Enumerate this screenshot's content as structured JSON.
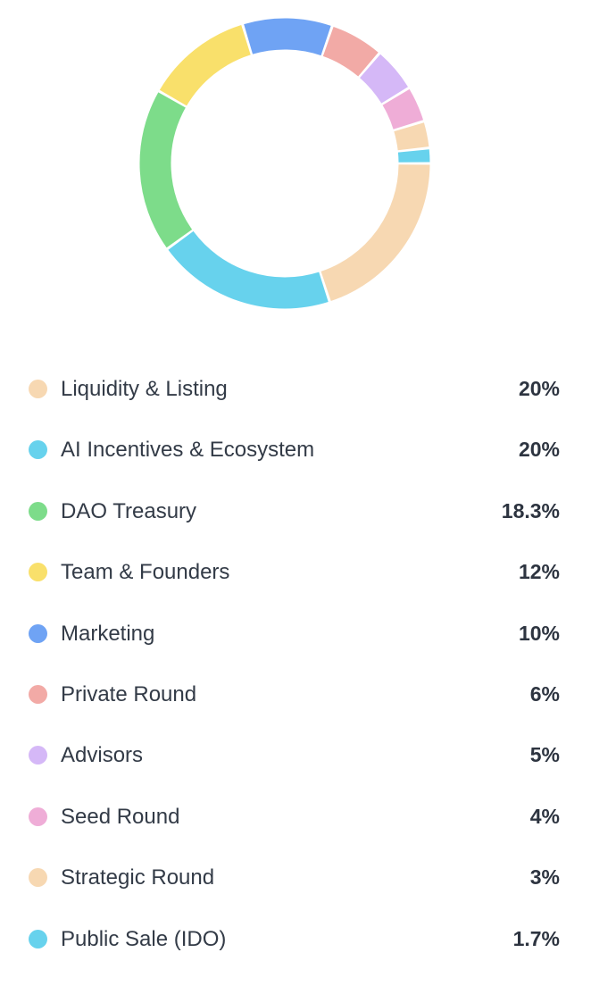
{
  "chart_data": {
    "type": "pie",
    "variant": "donut",
    "legend_position": "bottom",
    "categories": [
      "Liquidity & Listing",
      "AI Incentives & Ecosystem",
      "DAO Treasury",
      "Team & Founders",
      "Marketing",
      "Private Round",
      "Advisors",
      "Seed Round",
      "Strategic Round",
      "Public Sale (IDO)"
    ],
    "values": [
      20,
      20,
      18.3,
      12,
      10,
      6,
      5,
      4,
      3,
      1.7
    ],
    "value_labels": [
      "20%",
      "20%",
      "18.3%",
      "12%",
      "10%",
      "6%",
      "5%",
      "4%",
      "3%",
      "1.7%"
    ],
    "colors": [
      "#f7d8b2",
      "#67d2ed",
      "#7ddc8a",
      "#f9e06b",
      "#6fa3f4",
      "#f2aaa6",
      "#d5b8f7",
      "#efadd7",
      "#f7d8b2",
      "#67d2ed"
    ]
  }
}
